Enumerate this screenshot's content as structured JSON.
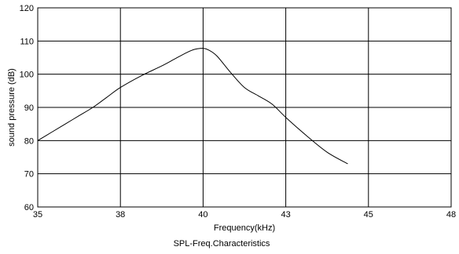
{
  "chart_data": {
    "type": "line",
    "title": "SPL-Freq.Characteristics",
    "xlabel": "Frequency(kHz)",
    "ylabel": "sound  pressure (dB)",
    "grid": true,
    "xticks": [
      35,
      38,
      40,
      43,
      45,
      48
    ],
    "yticks": [
      60,
      70,
      80,
      90,
      100,
      110,
      120
    ],
    "ylim": [
      60,
      120
    ],
    "series": [
      {
        "color": "#000000",
        "x": [
          35,
          35.5,
          36,
          36.5,
          37,
          37.5,
          38,
          38.5,
          39,
          39.3,
          39.6,
          39.8,
          40,
          40.2,
          40.5,
          41,
          41.5,
          42,
          42.5,
          43,
          43.5,
          44,
          44.5
        ],
        "y": [
          80,
          82.5,
          85,
          87.5,
          90,
          93,
          96,
          99.5,
          102.5,
          104.5,
          106.5,
          107.5,
          107.8,
          107.3,
          105.5,
          100.5,
          96,
          93.5,
          91,
          87,
          81.5,
          76.5,
          73
        ]
      }
    ]
  }
}
